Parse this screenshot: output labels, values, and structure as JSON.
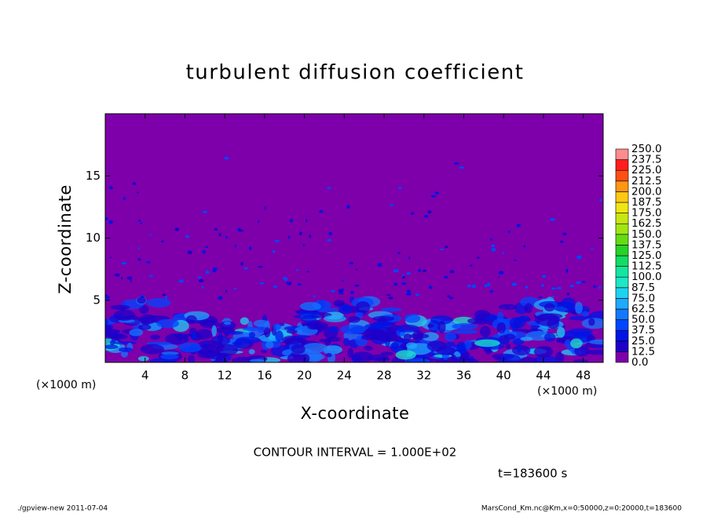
{
  "chart_data": {
    "type": "contour",
    "title": "turbulent diffusion coefficient",
    "xlabel": "X-coordinate",
    "ylabel": "Z-coordinate",
    "axis_unit": "(×1000 m)",
    "xlim": [
      0,
      50
    ],
    "xticks": [
      4,
      8,
      12,
      16,
      20,
      24,
      28,
      32,
      36,
      40,
      44,
      48
    ],
    "ylim": [
      0,
      20
    ],
    "yticks": [
      5,
      10,
      15
    ],
    "colorbar": {
      "levels": [
        {
          "value": 0,
          "label": "0.0"
        },
        {
          "value": 12.5,
          "label": "12.5"
        },
        {
          "value": 25,
          "label": "25.0"
        },
        {
          "value": 37.5,
          "label": "37.5"
        },
        {
          "value": 50,
          "label": "50.0"
        },
        {
          "value": 62.5,
          "label": "62.5"
        },
        {
          "value": 75,
          "label": "75.0"
        },
        {
          "value": 87.5,
          "label": "87.5"
        },
        {
          "value": 100,
          "label": "100.0"
        },
        {
          "value": 112.5,
          "label": "112.5"
        },
        {
          "value": 125,
          "label": "125.0"
        },
        {
          "value": 137.5,
          "label": "137.5"
        },
        {
          "value": 150,
          "label": "150.0"
        },
        {
          "value": 162.5,
          "label": "162.5"
        },
        {
          "value": 175,
          "label": "175.0"
        },
        {
          "value": 187.5,
          "label": "187.5"
        },
        {
          "value": 200,
          "label": "200.0"
        },
        {
          "value": 212.5,
          "label": "212.5"
        },
        {
          "value": 225,
          "label": "225.0"
        },
        {
          "value": 237.5,
          "label": "237.5"
        },
        {
          "value": 250,
          "label": "250.0"
        }
      ],
      "colors": [
        "#7d00aa",
        "#1e00c8",
        "#0014e6",
        "#0046ff",
        "#1478ff",
        "#1eaaff",
        "#1ed2f0",
        "#1ee6c8",
        "#14e6a0",
        "#14dc64",
        "#28d228",
        "#64dc14",
        "#a0e614",
        "#c8e614",
        "#f0e614",
        "#ffc814",
        "#ff9614",
        "#ff5014",
        "#ff1e1e",
        "#ff8c8c"
      ]
    },
    "contour_interval": "CONTOUR INTERVAL = 1.000E+02",
    "time_label": "t=183600 s",
    "footer_left": "./gpview-new  2011-07-04",
    "footer_right": "MarsCond_Km.nc@Km,x=0:50000,z=0:20000,t=183600"
  }
}
